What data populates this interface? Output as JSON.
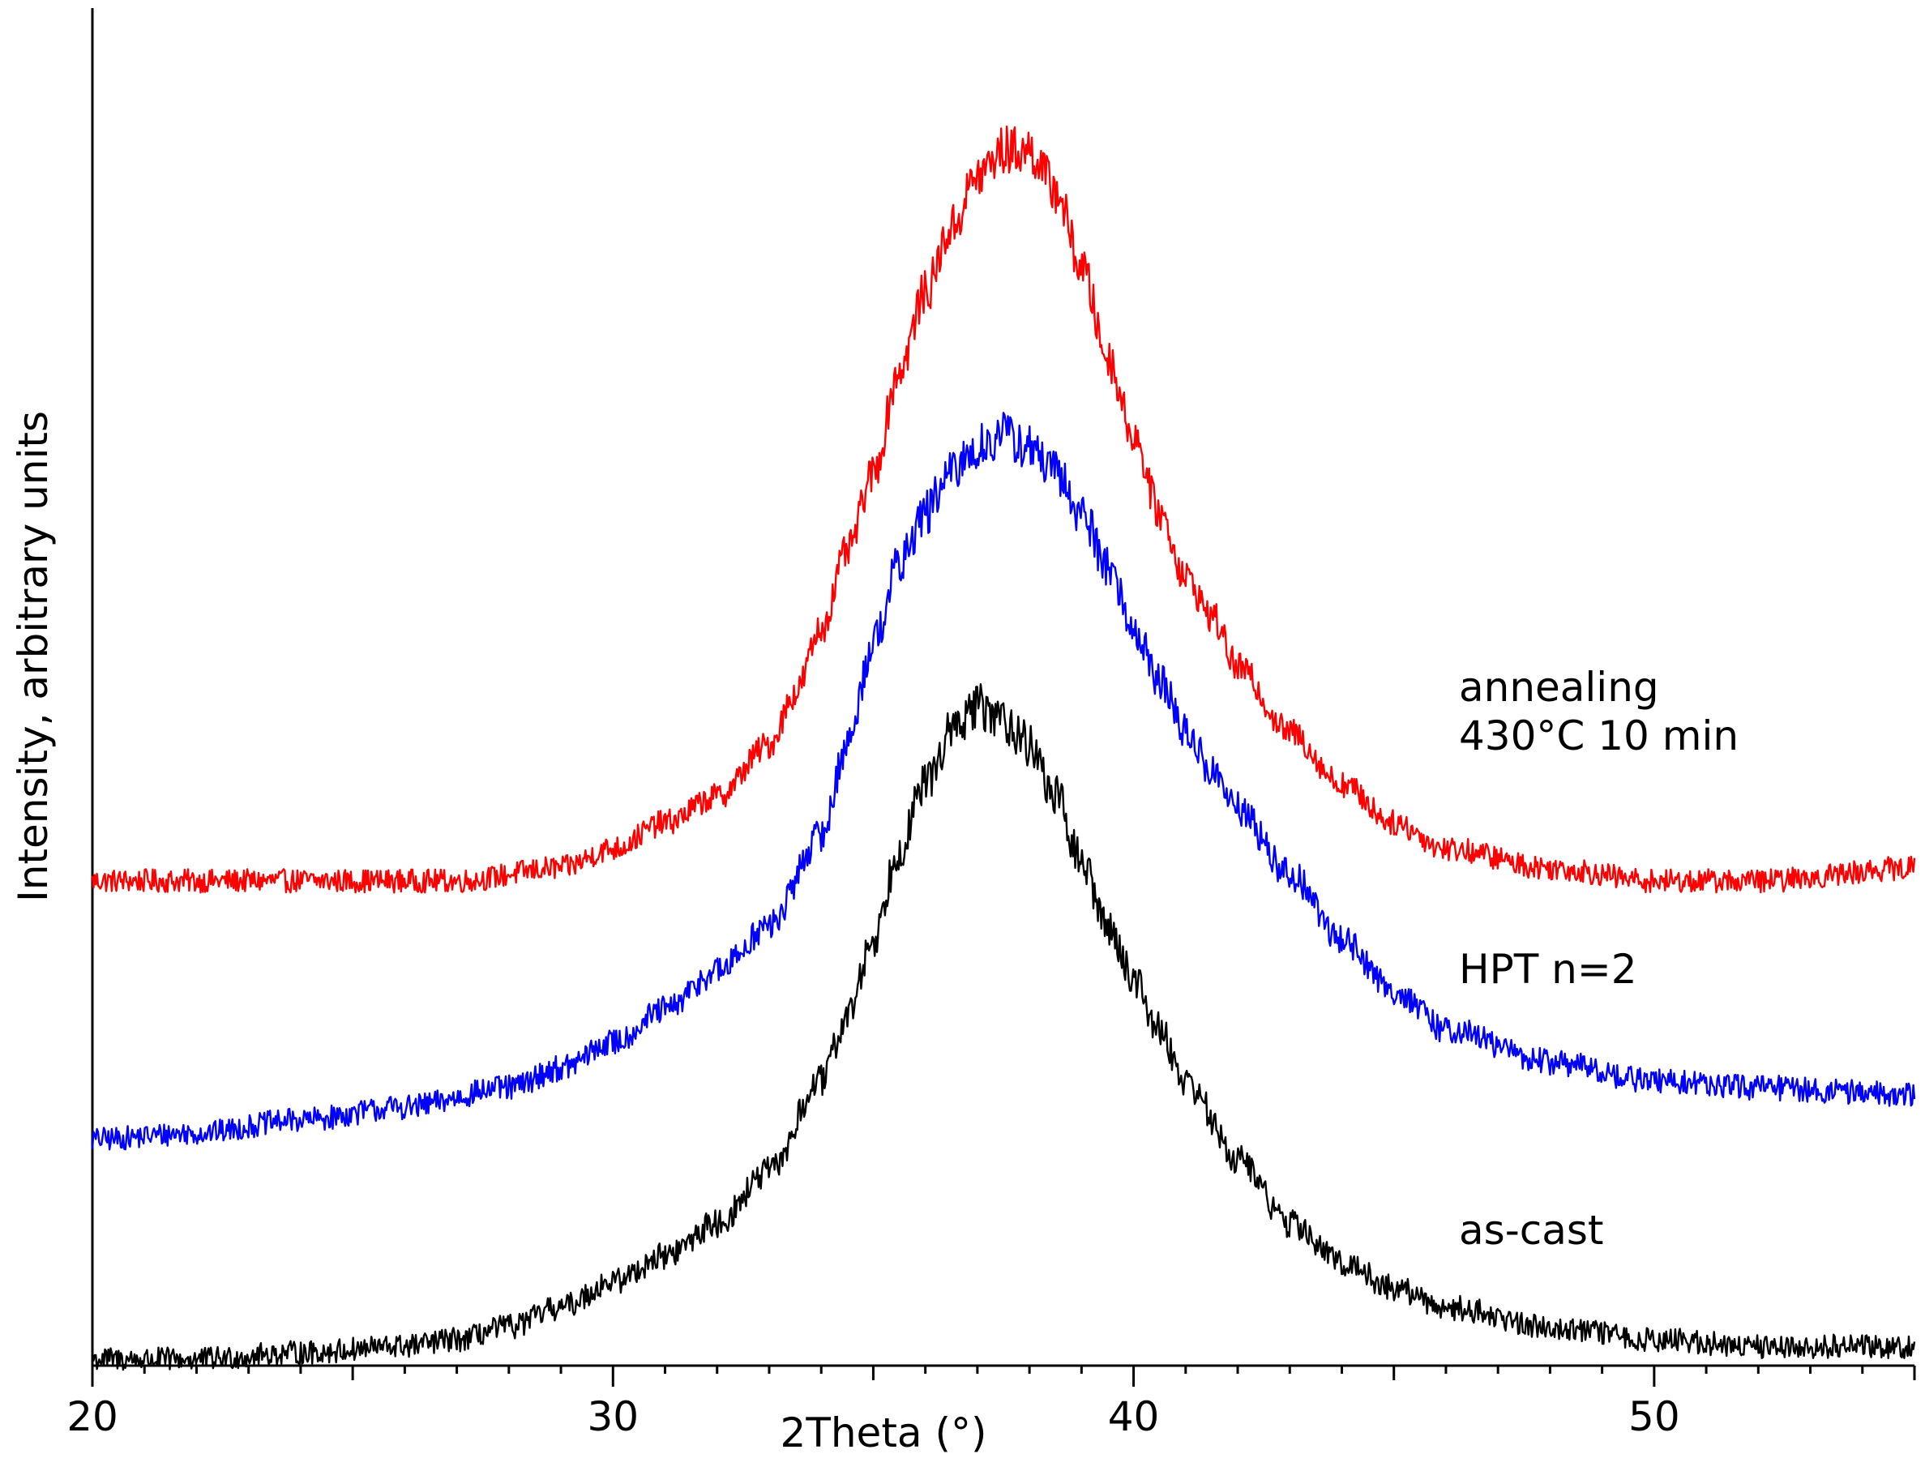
{
  "chart_data": {
    "type": "line",
    "title": "",
    "xlabel": "2Theta (°)",
    "ylabel": "Intensity, arbitrary units",
    "xlim": [
      20,
      55
    ],
    "ylim": [
      0,
      100
    ],
    "x_ticks": [
      20,
      30,
      40,
      50
    ],
    "x_tick_labels": [
      "20",
      "30",
      "40",
      "50"
    ],
    "y_ticks": [],
    "grid": false,
    "legend": "inline labels at right of each curve",
    "series": [
      {
        "name": "annealing 430°C 10 min",
        "label_lines": [
          "annealing",
          "430°C 10 min"
        ],
        "color": "#ff0000",
        "baseline": 37,
        "peak_height": 57,
        "peak_center": 37.4,
        "x": [
          20,
          24,
          27,
          29,
          30,
          31,
          32,
          33,
          33.5,
          34,
          34.5,
          35,
          35.5,
          36,
          36.5,
          37,
          37.5,
          38,
          38.5,
          39,
          39.5,
          40,
          40.5,
          41,
          41.5,
          42,
          43,
          44,
          45,
          46,
          48,
          50,
          52,
          55
        ],
        "y": [
          37.5,
          37.5,
          37.5,
          38.5,
          40,
          42,
          44,
          48,
          52,
          57,
          63,
          69,
          77,
          83,
          88,
          92,
          94,
          94,
          91,
          85,
          78,
          72,
          66,
          61,
          58,
          54,
          49,
          45,
          42,
          40,
          38.5,
          37.5,
          37.5,
          38.5
        ]
      },
      {
        "name": "HPT n=2",
        "label_lines": [
          "HPT n=2"
        ],
        "color": "#0000ff",
        "baseline": 17,
        "peak_height": 55,
        "peak_center": 37.3,
        "x": [
          20,
          22,
          24,
          26,
          28,
          29,
          30,
          31,
          32,
          33,
          34,
          34.5,
          35,
          35.5,
          36,
          36.5,
          37,
          37.5,
          38,
          38.5,
          39,
          39.5,
          40,
          40.5,
          41,
          41.5,
          42,
          43,
          44,
          45,
          46,
          48,
          50,
          52,
          55
        ],
        "y": [
          17.5,
          18,
          19,
          20,
          21.5,
          23,
          25,
          27.5,
          30.5,
          34,
          41,
          48,
          56,
          62,
          66,
          69,
          71,
          72,
          71,
          69,
          66,
          62,
          57,
          53,
          49,
          46,
          43,
          38,
          33,
          29,
          26,
          23.5,
          22,
          21.5,
          21
        ]
      },
      {
        "name": "as-cast",
        "label_lines": [
          "as-cast"
        ],
        "color": "#000000",
        "baseline": 0,
        "peak_height": 50,
        "peak_center": 37.2,
        "x": [
          20,
          22,
          24,
          26,
          27,
          28,
          29,
          30,
          31,
          32,
          33,
          34,
          34.5,
          35,
          35.5,
          36,
          36.5,
          37,
          37.5,
          38,
          38.5,
          39,
          39.5,
          40,
          40.5,
          41,
          42,
          43,
          44,
          45,
          46,
          48,
          50,
          52,
          55
        ],
        "y": [
          0.5,
          0.5,
          1,
          1.5,
          2,
          3,
          4.5,
          6.5,
          8.5,
          11,
          15,
          22,
          27,
          33,
          40,
          45,
          49,
          51,
          50,
          48,
          44,
          39,
          34,
          30,
          26,
          22,
          16,
          11,
          8,
          6,
          4.5,
          3,
          2,
          1.5,
          1.5
        ]
      }
    ]
  }
}
